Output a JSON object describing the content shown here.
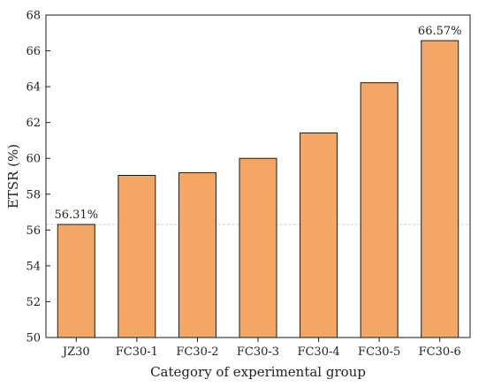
{
  "chart_data": {
    "type": "bar",
    "categories": [
      "JZ30",
      "FC30-1",
      "FC30-2",
      "FC30-3",
      "FC30-4",
      "FC30-5",
      "FC30-6"
    ],
    "values": [
      56.31,
      59.05,
      59.2,
      60.0,
      61.42,
      64.22,
      66.57
    ],
    "xlabel": "Category of experimental group",
    "ylabel": "ETSR (%)",
    "ylim": [
      50,
      68
    ],
    "yticks": [
      50,
      52,
      54,
      56,
      58,
      60,
      62,
      64,
      66,
      68
    ],
    "data_labels": [
      {
        "index": 0,
        "text": "56.31%"
      },
      {
        "index": 6,
        "text": "66.57%"
      }
    ],
    "reference_line": {
      "value": 56.31,
      "style": "dashed"
    },
    "grid": false,
    "colors": {
      "bar_fill": "#F4A765",
      "bar_stroke": "#1a1a1a",
      "axis": "#1a1a1a",
      "reference_line": "#cfcfcf"
    }
  }
}
